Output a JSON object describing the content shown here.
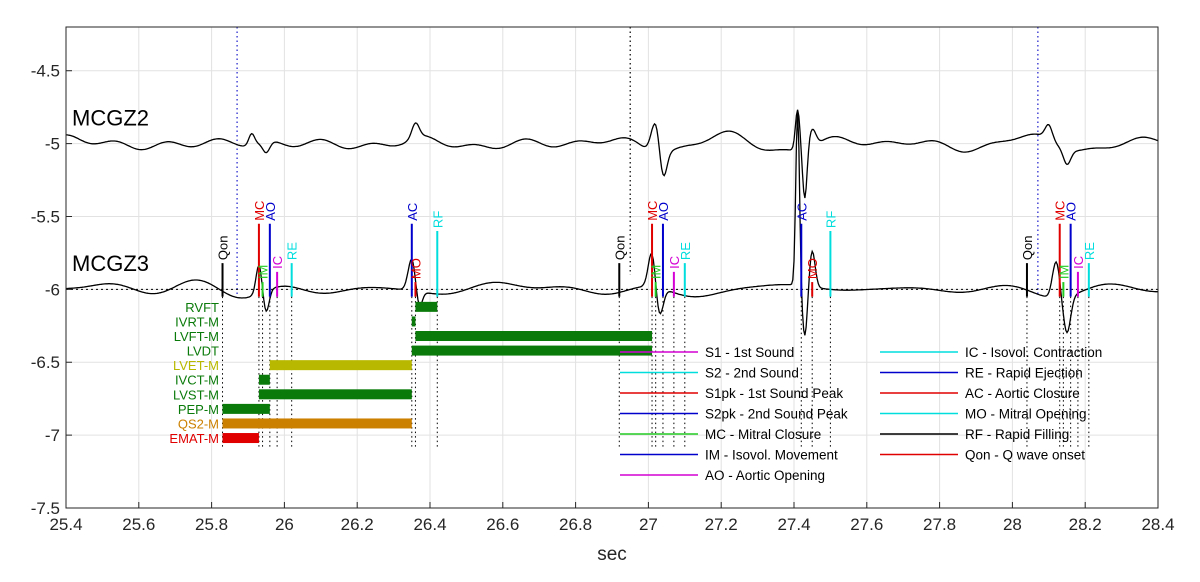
{
  "chart_data": {
    "type": "line",
    "xlabel": "sec",
    "ylabel": "",
    "xlim": [
      25.4,
      28.4
    ],
    "ylim": [
      -7.5,
      -4.2
    ],
    "xticks": [
      25.4,
      25.6,
      25.8,
      26,
      26.2,
      26.4,
      26.6,
      26.8,
      27,
      27.2,
      27.4,
      27.6,
      27.8,
      28,
      28.2,
      28.4
    ],
    "xtick_labels": [
      "25.4",
      "25.6",
      "25.8",
      "26",
      "26.2",
      "26.4",
      "26.6",
      "26.8",
      "27",
      "27.2",
      "27.4",
      "27.6",
      "27.8",
      "28",
      "28.2",
      "28.4"
    ],
    "yticks": [
      -4.5,
      -5,
      -5.5,
      -6,
      -6.5,
      -7,
      -7.5
    ],
    "ytick_labels": [
      "-4.5",
      "-5",
      "-5.5",
      "-6",
      "-6.5",
      "-7",
      "-7.5"
    ],
    "grid": true,
    "series": [
      {
        "name": "MCGZ2",
        "color": "#000000",
        "baseline": -5.0
      },
      {
        "name": "MCGZ3",
        "color": "#000000",
        "baseline": -6.0
      }
    ],
    "baseline_dashed_y": -6.0,
    "vertical_blue_dotted": [
      25.87,
      28.07
    ],
    "vertical_black_dotted": [
      26.95
    ],
    "event_markers": [
      {
        "label": "Qon",
        "x": 25.83,
        "color": "#000000"
      },
      {
        "label": "MC",
        "x": 25.93,
        "color": "#e00000"
      },
      {
        "label": "IM",
        "x": 25.94,
        "color": "#22cc22"
      },
      {
        "label": "AO",
        "x": 25.96,
        "color": "#0000cc"
      },
      {
        "label": "IC",
        "x": 25.98,
        "color": "#d400d4"
      },
      {
        "label": "RE",
        "x": 26.02,
        "color": "#00dddd"
      },
      {
        "label": "AC",
        "x": 26.35,
        "color": "#0000cc"
      },
      {
        "label": "MO",
        "x": 26.36,
        "color": "#e00000"
      },
      {
        "label": "RF",
        "x": 26.42,
        "color": "#00dddd"
      },
      {
        "label": "Qon",
        "x": 26.92,
        "color": "#000000"
      },
      {
        "label": "MC",
        "x": 27.01,
        "color": "#e00000"
      },
      {
        "label": "IM",
        "x": 27.02,
        "color": "#22cc22"
      },
      {
        "label": "AO",
        "x": 27.04,
        "color": "#0000cc"
      },
      {
        "label": "IC",
        "x": 27.07,
        "color": "#d400d4"
      },
      {
        "label": "RE",
        "x": 27.1,
        "color": "#00dddd"
      },
      {
        "label": "AC",
        "x": 27.42,
        "color": "#0000cc"
      },
      {
        "label": "MO",
        "x": 27.45,
        "color": "#e00000"
      },
      {
        "label": "RF",
        "x": 27.5,
        "color": "#00dddd"
      },
      {
        "label": "Qon",
        "x": 28.04,
        "color": "#000000"
      },
      {
        "label": "MC",
        "x": 28.13,
        "color": "#e00000"
      },
      {
        "label": "IM",
        "x": 28.14,
        "color": "#22cc22"
      },
      {
        "label": "AO",
        "x": 28.16,
        "color": "#0000cc"
      },
      {
        "label": "IC",
        "x": 28.18,
        "color": "#d400d4"
      },
      {
        "label": "RE",
        "x": 28.21,
        "color": "#00dddd"
      }
    ],
    "interval_bars": [
      {
        "label": "RVFT",
        "y": -6.12,
        "x0": 26.36,
        "x1": 26.42,
        "color": "#0a7a0a"
      },
      {
        "label": "IVRT-M",
        "y": -6.22,
        "x0": 26.35,
        "x1": 26.36,
        "color": "#0a7a0a"
      },
      {
        "label": "LVFT-M",
        "y": -6.32,
        "x0": 26.36,
        "x1": 27.01,
        "color": "#0a7a0a"
      },
      {
        "label": "LVDT",
        "y": -6.42,
        "x0": 26.35,
        "x1": 27.01,
        "color": "#0a7a0a"
      },
      {
        "label": "LVET-M",
        "y": -6.52,
        "x0": 25.96,
        "x1": 26.35,
        "color": "#b8b800"
      },
      {
        "label": "IVCT-M",
        "y": -6.62,
        "x0": 25.93,
        "x1": 25.96,
        "color": "#0a7a0a"
      },
      {
        "label": "LVST-M",
        "y": -6.72,
        "x0": 25.93,
        "x1": 26.35,
        "color": "#0a7a0a"
      },
      {
        "label": "PEP-M",
        "y": -6.82,
        "x0": 25.83,
        "x1": 25.96,
        "color": "#0a7a0a"
      },
      {
        "label": "QS2-M",
        "y": -6.92,
        "x0": 25.83,
        "x1": 26.35,
        "color": "#cc8000"
      },
      {
        "label": "EMAT-M",
        "y": -7.02,
        "x0": 25.83,
        "x1": 25.93,
        "color": "#e00000"
      }
    ],
    "legend": {
      "placement": "bottom-right",
      "columns": [
        [
          {
            "label": "S1 - 1st Sound",
            "color": "#d400d4"
          },
          {
            "label": "S2 - 2nd Sound",
            "color": "#00dddd"
          },
          {
            "label": "S1pk - 1st Sound Peak",
            "color": "#e00000"
          },
          {
            "label": "S2pk - 2nd Sound Peak",
            "color": "#0000cc"
          },
          {
            "label": "MC - Mitral Closure",
            "color": "#22cc22"
          },
          {
            "label": "IM - Isovol. Movement",
            "color": "#0000cc"
          },
          {
            "label": "AO - Aortic Opening",
            "color": "#d400d4"
          }
        ],
        [
          {
            "label": "IC - Isovol. Contraction",
            "color": "#00dddd"
          },
          {
            "label": "RE - Rapid Ejection",
            "color": "#0000cc"
          },
          {
            "label": "AC - Aortic Closure",
            "color": "#e00000"
          },
          {
            "label": "MO - Mitral Opening",
            "color": "#00dddd"
          },
          {
            "label": "RF - Rapid Filling",
            "color": "#000000"
          },
          {
            "label": "Qon - Q wave onset",
            "color": "#e00000"
          }
        ]
      ]
    }
  }
}
